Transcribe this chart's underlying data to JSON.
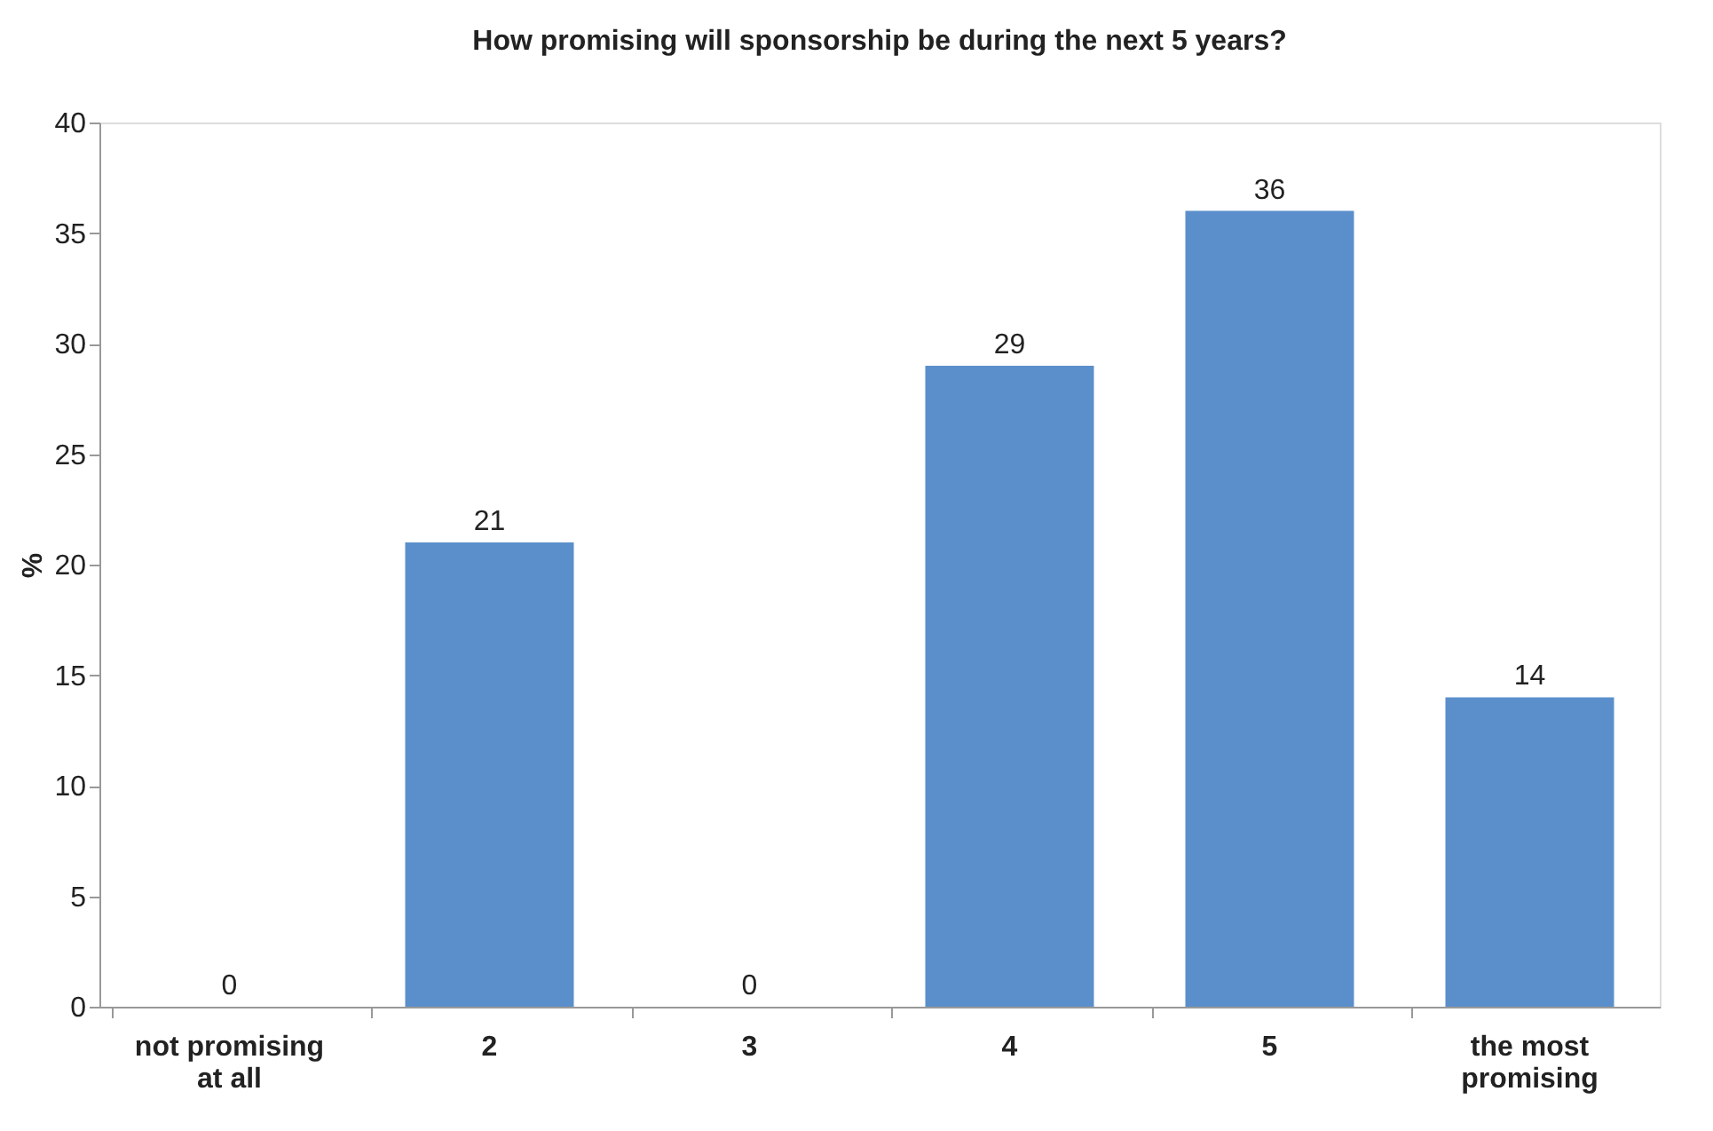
{
  "chart_data": {
    "type": "bar",
    "title": "How promising will sponsorship be during the next 5 years?",
    "ylabel": "%",
    "categories": [
      "not promising at all",
      "2",
      "3",
      "4",
      "5",
      "the most promising"
    ],
    "values": [
      0,
      21,
      0,
      29,
      36,
      14
    ],
    "color": "#5b8fcb",
    "data_labels": true,
    "ylim": [
      0,
      40
    ],
    "yticks": [
      0,
      5,
      10,
      15,
      20,
      25,
      30,
      35,
      40
    ],
    "grid": false
  }
}
